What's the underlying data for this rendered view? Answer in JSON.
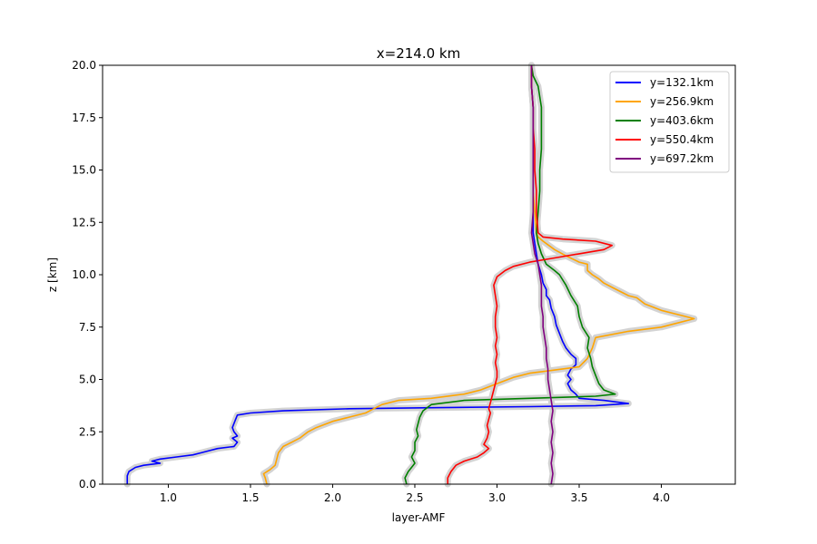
{
  "chart_data": {
    "type": "line",
    "title": "x=214.0 km",
    "xlabel": "layer-AMF",
    "ylabel": "z [km]",
    "xlim": [
      0.6,
      4.45
    ],
    "ylim": [
      0,
      20
    ],
    "xticks": [
      1.0,
      1.5,
      2.0,
      2.5,
      3.0,
      3.5,
      4.0
    ],
    "xtick_labels": [
      "1.0",
      "1.5",
      "2.0",
      "2.5",
      "3.0",
      "3.5",
      "4.0"
    ],
    "yticks": [
      0,
      2.5,
      5,
      7.5,
      10,
      12.5,
      15,
      17.5,
      20
    ],
    "ytick_labels": [
      "0.0",
      "2.5",
      "5.0",
      "7.5",
      "10.0",
      "12.5",
      "15.0",
      "17.5",
      "20.0"
    ],
    "grid": false,
    "legend_position": "top-right",
    "uncertainty_band_color": "#d3d3d3",
    "series": [
      {
        "name": "y=132.1km",
        "color": "#0000ff",
        "points": [
          [
            0.75,
            0
          ],
          [
            0.75,
            0.4
          ],
          [
            0.76,
            0.6
          ],
          [
            0.8,
            0.8
          ],
          [
            0.85,
            0.9
          ],
          [
            0.95,
            1.0
          ],
          [
            0.9,
            1.1
          ],
          [
            0.95,
            1.2
          ],
          [
            1.05,
            1.3
          ],
          [
            1.15,
            1.4
          ],
          [
            1.2,
            1.5
          ],
          [
            1.25,
            1.6
          ],
          [
            1.3,
            1.7
          ],
          [
            1.4,
            1.8
          ],
          [
            1.42,
            2.0
          ],
          [
            1.39,
            2.2
          ],
          [
            1.42,
            2.3
          ],
          [
            1.4,
            2.5
          ],
          [
            1.39,
            2.7
          ],
          [
            1.4,
            2.9
          ],
          [
            1.41,
            3.1
          ],
          [
            1.42,
            3.3
          ],
          [
            1.5,
            3.4
          ],
          [
            1.7,
            3.5
          ],
          [
            2.1,
            3.6
          ],
          [
            2.6,
            3.65
          ],
          [
            3.2,
            3.7
          ],
          [
            3.6,
            3.75
          ],
          [
            3.8,
            3.85
          ],
          [
            3.65,
            4.0
          ],
          [
            3.5,
            4.1
          ],
          [
            3.48,
            4.3
          ],
          [
            3.45,
            4.5
          ],
          [
            3.43,
            4.8
          ],
          [
            3.45,
            5.0
          ],
          [
            3.43,
            5.2
          ],
          [
            3.45,
            5.5
          ],
          [
            3.48,
            5.7
          ],
          [
            3.48,
            6.0
          ],
          [
            3.45,
            6.2
          ],
          [
            3.42,
            6.5
          ],
          [
            3.4,
            6.8
          ],
          [
            3.38,
            7.2
          ],
          [
            3.36,
            7.6
          ],
          [
            3.35,
            8.0
          ],
          [
            3.33,
            8.4
          ],
          [
            3.32,
            8.8
          ],
          [
            3.3,
            9.0
          ],
          [
            3.3,
            9.3
          ],
          [
            3.28,
            9.6
          ],
          [
            3.27,
            10.0
          ],
          [
            3.25,
            10.5
          ],
          [
            3.24,
            11.0
          ],
          [
            3.23,
            11.5
          ],
          [
            3.22,
            12.0
          ],
          [
            3.22,
            13.0
          ],
          [
            3.22,
            14.0
          ],
          [
            3.22,
            15.0
          ],
          [
            3.22,
            16.0
          ],
          [
            3.22,
            17.0
          ],
          [
            3.22,
            18.0
          ],
          [
            3.21,
            19.0
          ],
          [
            3.21,
            20.0
          ]
        ]
      },
      {
        "name": "y=256.9km",
        "color": "#ffa500",
        "points": [
          [
            1.6,
            0
          ],
          [
            1.59,
            0.3
          ],
          [
            1.58,
            0.5
          ],
          [
            1.62,
            0.7
          ],
          [
            1.65,
            0.9
          ],
          [
            1.66,
            1.2
          ],
          [
            1.67,
            1.5
          ],
          [
            1.7,
            1.8
          ],
          [
            1.75,
            2.0
          ],
          [
            1.8,
            2.2
          ],
          [
            1.85,
            2.5
          ],
          [
            1.9,
            2.7
          ],
          [
            2.0,
            3.0
          ],
          [
            2.1,
            3.2
          ],
          [
            2.2,
            3.4
          ],
          [
            2.25,
            3.6
          ],
          [
            2.3,
            3.8
          ],
          [
            2.4,
            4.0
          ],
          [
            2.6,
            4.1
          ],
          [
            2.8,
            4.3
          ],
          [
            2.9,
            4.5
          ],
          [
            3.0,
            4.8
          ],
          [
            3.1,
            5.1
          ],
          [
            3.2,
            5.3
          ],
          [
            3.3,
            5.4
          ],
          [
            3.4,
            5.5
          ],
          [
            3.5,
            5.6
          ],
          [
            3.55,
            6.0
          ],
          [
            3.58,
            6.5
          ],
          [
            3.6,
            7.0
          ],
          [
            3.8,
            7.3
          ],
          [
            4.0,
            7.5
          ],
          [
            4.2,
            7.9
          ],
          [
            4.1,
            8.1
          ],
          [
            4.0,
            8.3
          ],
          [
            3.9,
            8.6
          ],
          [
            3.85,
            8.9
          ],
          [
            3.8,
            9.0
          ],
          [
            3.75,
            9.2
          ],
          [
            3.7,
            9.4
          ],
          [
            3.65,
            9.6
          ],
          [
            3.62,
            9.8
          ],
          [
            3.58,
            10.0
          ],
          [
            3.55,
            10.2
          ],
          [
            3.55,
            10.5
          ],
          [
            3.5,
            10.6
          ],
          [
            3.42,
            10.9
          ],
          [
            3.35,
            11.2
          ],
          [
            3.28,
            11.6
          ],
          [
            3.25,
            11.8
          ],
          [
            3.24,
            12.0
          ],
          [
            3.23,
            13.0
          ],
          [
            3.22,
            14.0
          ],
          [
            3.22,
            15.0
          ],
          [
            3.22,
            16.0
          ],
          [
            3.22,
            17.0
          ],
          [
            3.22,
            18.0
          ],
          [
            3.21,
            19.0
          ],
          [
            3.21,
            20.0
          ]
        ]
      },
      {
        "name": "y=403.6km",
        "color": "#008000",
        "points": [
          [
            2.45,
            0
          ],
          [
            2.44,
            0.3
          ],
          [
            2.46,
            0.6
          ],
          [
            2.48,
            0.8
          ],
          [
            2.5,
            1.0
          ],
          [
            2.48,
            1.3
          ],
          [
            2.5,
            1.6
          ],
          [
            2.5,
            2.0
          ],
          [
            2.52,
            2.3
          ],
          [
            2.51,
            2.6
          ],
          [
            2.52,
            2.9
          ],
          [
            2.53,
            3.2
          ],
          [
            2.55,
            3.5
          ],
          [
            2.6,
            3.8
          ],
          [
            2.8,
            4.0
          ],
          [
            3.2,
            4.1
          ],
          [
            3.6,
            4.2
          ],
          [
            3.72,
            4.3
          ],
          [
            3.65,
            4.5
          ],
          [
            3.62,
            4.8
          ],
          [
            3.6,
            5.2
          ],
          [
            3.58,
            5.6
          ],
          [
            3.57,
            6.0
          ],
          [
            3.55,
            6.5
          ],
          [
            3.56,
            7.0
          ],
          [
            3.52,
            7.5
          ],
          [
            3.5,
            8.0
          ],
          [
            3.49,
            8.5
          ],
          [
            3.45,
            9.0
          ],
          [
            3.42,
            9.5
          ],
          [
            3.38,
            10.0
          ],
          [
            3.35,
            10.2
          ],
          [
            3.3,
            10.5
          ],
          [
            3.27,
            11.0
          ],
          [
            3.25,
            11.5
          ],
          [
            3.24,
            12.0
          ],
          [
            3.25,
            13.0
          ],
          [
            3.26,
            14.0
          ],
          [
            3.26,
            15.0
          ],
          [
            3.27,
            16.0
          ],
          [
            3.27,
            17.0
          ],
          [
            3.27,
            18.0
          ],
          [
            3.25,
            19.0
          ],
          [
            3.22,
            19.5
          ],
          [
            3.21,
            20.0
          ]
        ]
      },
      {
        "name": "y=550.4km",
        "color": "#ff0000",
        "points": [
          [
            2.7,
            0
          ],
          [
            2.7,
            0.3
          ],
          [
            2.72,
            0.6
          ],
          [
            2.75,
            0.9
          ],
          [
            2.8,
            1.1
          ],
          [
            2.88,
            1.3
          ],
          [
            2.92,
            1.5
          ],
          [
            2.95,
            1.7
          ],
          [
            2.92,
            1.9
          ],
          [
            2.94,
            2.2
          ],
          [
            2.95,
            2.5
          ],
          [
            2.94,
            2.8
          ],
          [
            2.95,
            3.1
          ],
          [
            2.96,
            3.4
          ],
          [
            2.95,
            3.6
          ],
          [
            2.96,
            3.9
          ],
          [
            2.97,
            4.2
          ],
          [
            2.98,
            4.5
          ],
          [
            2.99,
            4.8
          ],
          [
            3.0,
            5.1
          ],
          [
            3.0,
            5.4
          ],
          [
            2.99,
            5.8
          ],
          [
            3.0,
            6.2
          ],
          [
            2.99,
            6.6
          ],
          [
            3.0,
            7.0
          ],
          [
            2.99,
            7.5
          ],
          [
            2.99,
            8.0
          ],
          [
            3.0,
            8.5
          ],
          [
            2.99,
            9.0
          ],
          [
            2.98,
            9.5
          ],
          [
            3.0,
            9.9
          ],
          [
            3.05,
            10.2
          ],
          [
            3.1,
            10.4
          ],
          [
            3.2,
            10.6
          ],
          [
            3.35,
            10.8
          ],
          [
            3.5,
            11.0
          ],
          [
            3.65,
            11.2
          ],
          [
            3.7,
            11.4
          ],
          [
            3.6,
            11.6
          ],
          [
            3.4,
            11.7
          ],
          [
            3.28,
            11.8
          ],
          [
            3.25,
            12.0
          ],
          [
            3.24,
            13.0
          ],
          [
            3.24,
            14.0
          ],
          [
            3.23,
            15.0
          ],
          [
            3.23,
            16.0
          ],
          [
            3.22,
            17.0
          ],
          [
            3.22,
            18.0
          ],
          [
            3.21,
            19.0
          ],
          [
            3.21,
            20.0
          ]
        ]
      },
      {
        "name": "y=697.2km",
        "color": "#800080",
        "points": [
          [
            3.33,
            0
          ],
          [
            3.34,
            0.5
          ],
          [
            3.33,
            1.0
          ],
          [
            3.34,
            1.5
          ],
          [
            3.33,
            2.0
          ],
          [
            3.34,
            2.5
          ],
          [
            3.33,
            3.0
          ],
          [
            3.34,
            3.5
          ],
          [
            3.33,
            4.0
          ],
          [
            3.32,
            4.5
          ],
          [
            3.31,
            5.0
          ],
          [
            3.31,
            5.5
          ],
          [
            3.3,
            6.0
          ],
          [
            3.3,
            6.5
          ],
          [
            3.29,
            7.0
          ],
          [
            3.28,
            7.5
          ],
          [
            3.28,
            8.0
          ],
          [
            3.27,
            8.5
          ],
          [
            3.27,
            9.0
          ],
          [
            3.27,
            9.5
          ],
          [
            3.26,
            10.0
          ],
          [
            3.25,
            10.5
          ],
          [
            3.23,
            11.0
          ],
          [
            3.22,
            11.5
          ],
          [
            3.21,
            12.0
          ],
          [
            3.22,
            13.0
          ],
          [
            3.22,
            14.0
          ],
          [
            3.22,
            15.0
          ],
          [
            3.22,
            16.0
          ],
          [
            3.22,
            17.0
          ],
          [
            3.22,
            18.0
          ],
          [
            3.21,
            19.0
          ],
          [
            3.21,
            20.0
          ]
        ]
      }
    ]
  }
}
